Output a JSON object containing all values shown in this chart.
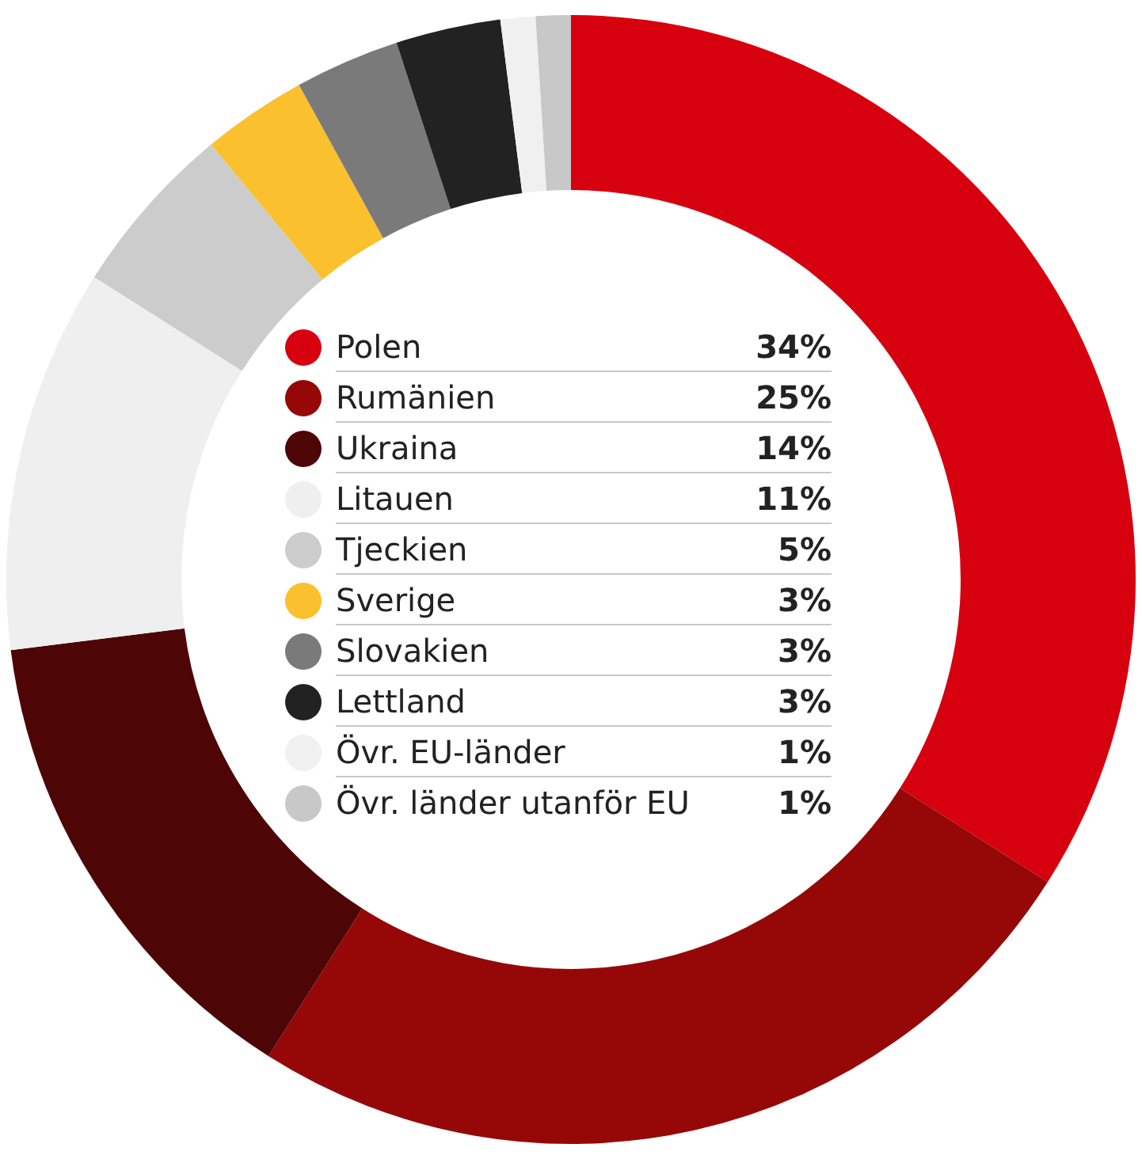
{
  "chart_data": {
    "type": "donut",
    "categories": [
      "Polen",
      "Rumänien",
      "Ukraina",
      "Litauen",
      "Tjeckien",
      "Sverige",
      "Slovakien",
      "Lettland",
      "Övr. EU-länder",
      "Övr. länder utanför EU"
    ],
    "values": [
      34,
      25,
      14,
      11,
      5,
      3,
      3,
      3,
      1,
      1
    ],
    "colors": [
      "#d7000f",
      "#960808",
      "#4d0505",
      "#efefef",
      "#cccccc",
      "#fbc02d",
      "#7a7a7a",
      "#222222",
      "#f0f0f0",
      "#c8c8c8"
    ],
    "value_labels": [
      "34%",
      "25%",
      "14%",
      "11%",
      "5%",
      "3%",
      "3%",
      "3%",
      "1%",
      "1%"
    ],
    "legend": "center"
  }
}
